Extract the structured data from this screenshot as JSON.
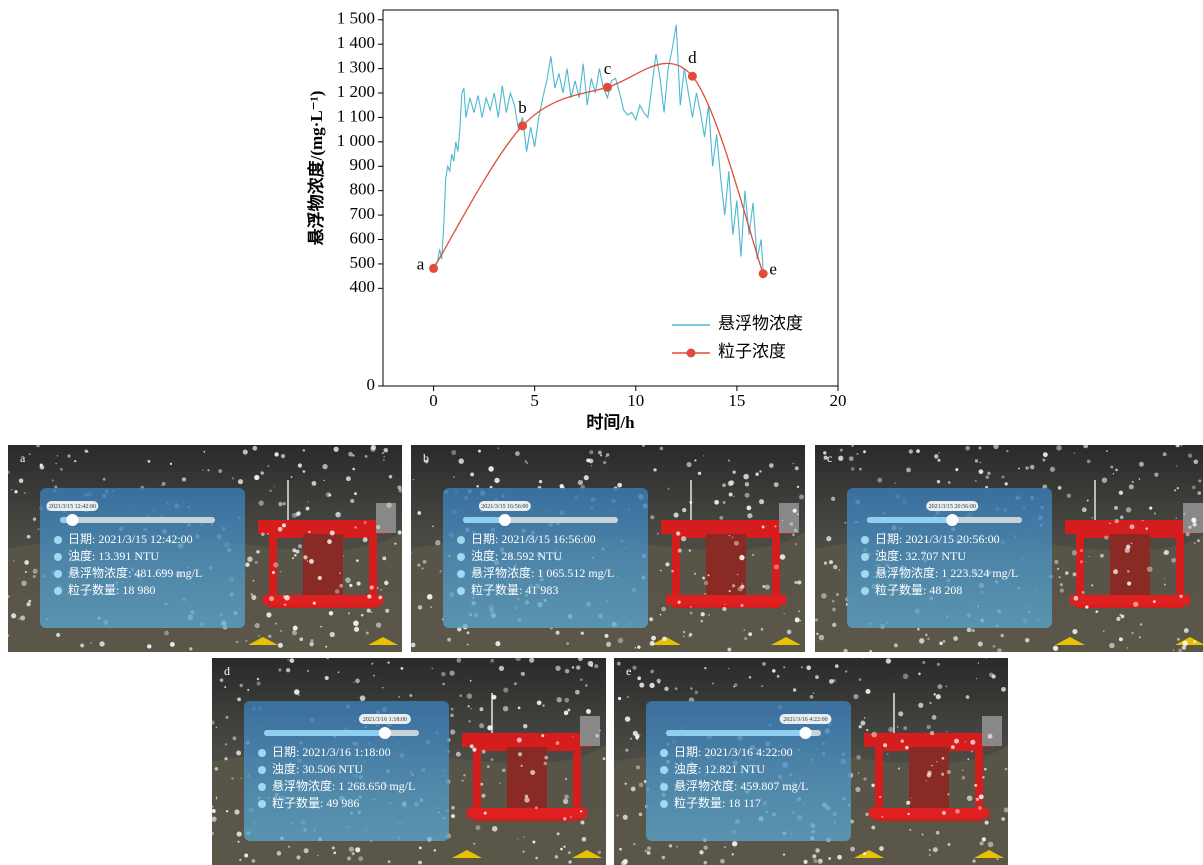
{
  "chart_data": {
    "type": "line",
    "xlabel": "时间/h",
    "ylabel": "悬浮物浓度/(mg·L⁻¹)",
    "xlim": [
      -2.5,
      20
    ],
    "xticks": [
      0,
      5,
      10,
      15,
      20
    ],
    "ylim": [
      0,
      1540
    ],
    "yticks": [
      0,
      400,
      500,
      600,
      700,
      800,
      900,
      {
        "value": 1000,
        "label": "1 000"
      },
      {
        "value": 1100,
        "label": "1 100"
      },
      {
        "value": 1200,
        "label": "1 200"
      },
      {
        "value": 1300,
        "label": "1 300"
      },
      {
        "value": 1400,
        "label": "1 400"
      },
      {
        "value": 1500,
        "label": "1 500"
      }
    ],
    "legend": "lower right",
    "series": [
      {
        "name": "悬浮物浓度",
        "color": "#4bb8d0",
        "smooth": false,
        "markers": false,
        "x": [
          0,
          0.2,
          0.3,
          0.4,
          0.5,
          0.6,
          0.7,
          0.8,
          0.9,
          1.0,
          1.1,
          1.2,
          1.3,
          1.4,
          1.5,
          1.6,
          1.8,
          2.0,
          2.2,
          2.4,
          2.6,
          2.8,
          3.0,
          3.2,
          3.4,
          3.6,
          3.8,
          4.0,
          4.2,
          4.4,
          4.6,
          4.8,
          5.0,
          5.2,
          5.4,
          5.6,
          5.8,
          6.0,
          6.2,
          6.4,
          6.6,
          6.8,
          7.0,
          7.2,
          7.4,
          7.6,
          7.8,
          8.0,
          8.2,
          8.4,
          8.6,
          8.8,
          9.0,
          9.2,
          9.4,
          9.6,
          9.8,
          10.0,
          10.2,
          10.4,
          10.6,
          10.8,
          11.0,
          11.2,
          11.4,
          11.6,
          11.8,
          12.0,
          12.2,
          12.4,
          12.6,
          12.8,
          13.0,
          13.2,
          13.4,
          13.6,
          13.8,
          14.0,
          14.2,
          14.4,
          14.6,
          14.8,
          15.0,
          15.2,
          15.4,
          15.6,
          15.8,
          16.0,
          16.2,
          16.3
        ],
        "values": [
          490,
          510,
          560,
          520,
          650,
          850,
          900,
          880,
          950,
          920,
          1000,
          960,
          1050,
          1200,
          1220,
          1100,
          1180,
          1120,
          1190,
          1100,
          1180,
          1130,
          1200,
          1100,
          1230,
          1120,
          1200,
          1150,
          1050,
          1100,
          960,
          1060,
          980,
          1100,
          1180,
          1250,
          1350,
          1220,
          1280,
          1200,
          1300,
          1180,
          1250,
          1180,
          1320,
          1150,
          1260,
          1200,
          1300,
          1220,
          1180,
          1250,
          1260,
          1200,
          1130,
          1110,
          1120,
          1090,
          1150,
          1120,
          1100,
          1230,
          1360,
          1260,
          1120,
          1300,
          1380,
          1480,
          1150,
          1300,
          1200,
          1100,
          1200,
          1120,
          1020,
          1150,
          900,
          1030,
          850,
          700,
          880,
          620,
          760,
          530,
          800,
          620,
          750,
          520,
          600,
          470
        ]
      },
      {
        "name": "粒子浓度",
        "color": "#e04b3a",
        "smooth": true,
        "markers": true,
        "x": [
          0,
          4.4,
          8.6,
          12.8,
          16.3
        ],
        "values": [
          481.699,
          1065.512,
          1223.524,
          1268.65,
          459.807
        ],
        "point_labels": [
          "a",
          "b",
          "c",
          "d",
          "e"
        ]
      }
    ]
  },
  "panels": [
    {
      "label": "a",
      "slider": "2021/3/15 12:42:00",
      "lines": [
        "日期: 2021/3/15 12:42:00",
        "浊度: 13.391 NTU",
        "悬浮物浓度: 481.699 mg/L",
        "粒子数量: 18 980"
      ]
    },
    {
      "label": "b",
      "slider": "2021/3/15 16:56:00",
      "lines": [
        "日期: 2021/3/15 16:56:00",
        "浊度: 28.592 NTU",
        "悬浮物浓度: 1 065.512 mg/L",
        "粒子数量: 41 983"
      ]
    },
    {
      "label": "c",
      "slider": "2021/3/15 20:56:00",
      "lines": [
        "日期: 2021/3/15 20:56:00",
        "浊度: 32.707 NTU",
        "悬浮物浓度: 1 223.524 mg/L",
        "粒子数量: 48 208"
      ]
    },
    {
      "label": "d",
      "slider": "2021/3/16 1:18:00",
      "lines": [
        "日期: 2021/3/16 1:18:00",
        "浊度: 30.506 NTU",
        "悬浮物浓度: 1 268.650 mg/L",
        "粒子数量: 49 986"
      ]
    },
    {
      "label": "e",
      "slider": "2021/3/16 4:22:00",
      "lines": [
        "日期: 2021/3/16 4:22:00",
        "浊度: 12.821 NTU",
        "悬浮物浓度: 459.807 mg/L",
        "粒子数量: 18 117"
      ]
    }
  ]
}
